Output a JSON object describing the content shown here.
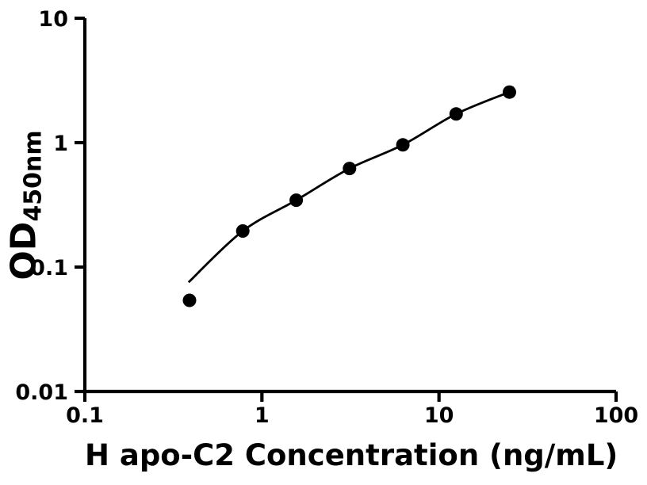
{
  "figure": {
    "background_color": "#ffffff",
    "foreground_color": "#000000"
  },
  "chart_data": {
    "type": "scatter",
    "title": "",
    "xlabel": "H apo-C2 Concentration (ng/mL)",
    "ylabel": "OD450nm",
    "ylabel_main": "OD",
    "ylabel_sub": "450nm",
    "x_scale": "log",
    "y_scale": "log",
    "xlim": [
      0.1,
      100
    ],
    "ylim": [
      0.01,
      10
    ],
    "x_ticks": {
      "values": [
        0.1,
        1,
        10,
        100
      ],
      "labels": [
        "0.1",
        "1",
        "10",
        "100"
      ]
    },
    "y_ticks": {
      "values": [
        10,
        1,
        0.1,
        0.01
      ],
      "labels": [
        "10",
        "1",
        "0.1",
        "0.01"
      ]
    },
    "grid": false,
    "legend": false,
    "marker_color": "#000000",
    "line_color": "#000000",
    "series": [
      {
        "name": "fitted-curve",
        "type": "line",
        "color": "#000000",
        "points": [
          [
            0.385,
            0.0755
          ],
          [
            0.78,
            0.195
          ],
          [
            1.5625,
            0.345
          ],
          [
            3.125,
            0.62
          ],
          [
            6.25,
            0.96
          ],
          [
            12.5,
            1.7
          ],
          [
            25,
            2.55
          ]
        ]
      },
      {
        "name": "standard-points",
        "type": "scatter",
        "marker": "circle",
        "color": "#000000",
        "x": [
          0.39,
          0.78,
          1.5625,
          3.125,
          6.25,
          12.5,
          25
        ],
        "y": [
          0.054,
          0.195,
          0.345,
          0.62,
          0.96,
          1.7,
          2.55
        ]
      }
    ]
  }
}
